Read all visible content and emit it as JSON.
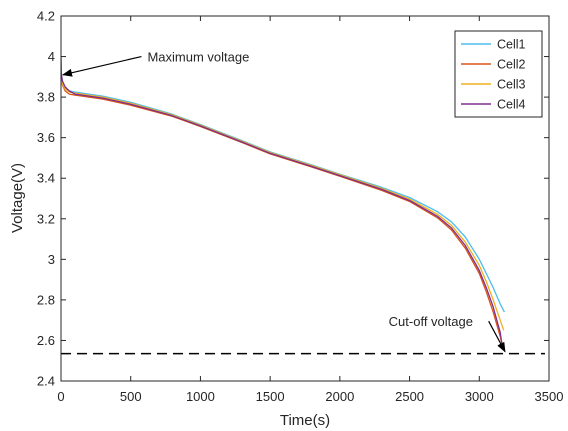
{
  "chart_data": {
    "type": "line",
    "xlabel": "Time(s)",
    "ylabel": "Voltage(V)",
    "xlim": [
      0,
      3500
    ],
    "ylim": [
      2.4,
      4.2
    ],
    "xticks": [
      0,
      500,
      1000,
      1500,
      2000,
      2500,
      3000,
      3500
    ],
    "yticks": [
      2.4,
      2.6,
      2.8,
      3,
      3.2,
      3.4,
      3.6,
      3.8,
      4,
      4.2
    ],
    "xtick_labels": [
      "0",
      "500",
      "1000",
      "1500",
      "2000",
      "2500",
      "3000",
      "3500"
    ],
    "ytick_labels": [
      "2.4",
      "2.6",
      "2.8",
      "3",
      "3.2",
      "3.4",
      "3.6",
      "3.8",
      "4",
      "4.2"
    ],
    "grid": false,
    "legend_position": "top-right",
    "series": [
      {
        "name": "Cell1",
        "color": "#4DBEEE",
        "x": [
          0,
          10,
          30,
          60,
          100,
          200,
          300,
          500,
          800,
          1000,
          1300,
          1500,
          1800,
          2000,
          2300,
          2500,
          2700,
          2800,
          2900,
          3000,
          3050,
          3100,
          3150,
          3180
        ],
        "y": [
          3.9,
          3.87,
          3.845,
          3.83,
          3.825,
          3.815,
          3.805,
          3.775,
          3.715,
          3.665,
          3.585,
          3.53,
          3.465,
          3.42,
          3.355,
          3.305,
          3.235,
          3.185,
          3.11,
          3.0,
          2.93,
          2.86,
          2.78,
          2.74
        ]
      },
      {
        "name": "Cell2",
        "color": "#D95319",
        "x": [
          0,
          10,
          30,
          60,
          100,
          200,
          300,
          500,
          800,
          1000,
          1300,
          1500,
          1800,
          2000,
          2300,
          2500,
          2700,
          2800,
          2900,
          3000,
          3050,
          3100,
          3150,
          3170
        ],
        "y": [
          3.9,
          3.86,
          3.83,
          3.815,
          3.81,
          3.8,
          3.79,
          3.76,
          3.705,
          3.655,
          3.575,
          3.52,
          3.455,
          3.41,
          3.34,
          3.285,
          3.205,
          3.145,
          3.055,
          2.93,
          2.84,
          2.74,
          2.62,
          2.56
        ]
      },
      {
        "name": "Cell3",
        "color": "#EDB120",
        "x": [
          0,
          10,
          30,
          60,
          100,
          200,
          300,
          500,
          800,
          1000,
          1300,
          1500,
          1800,
          2000,
          2300,
          2500,
          2700,
          2800,
          2900,
          3000,
          3050,
          3100,
          3150,
          3175
        ],
        "y": [
          3.9,
          3.865,
          3.84,
          3.825,
          3.82,
          3.81,
          3.8,
          3.77,
          3.712,
          3.662,
          3.582,
          3.527,
          3.462,
          3.417,
          3.35,
          3.297,
          3.222,
          3.168,
          3.085,
          2.97,
          2.89,
          2.8,
          2.7,
          2.65
        ]
      },
      {
        "name": "Cell4",
        "color": "#7E2F8E",
        "x": [
          0,
          2,
          10,
          30,
          60,
          100,
          200,
          300,
          500,
          800,
          1000,
          1300,
          1500,
          1800,
          2000,
          2300,
          2500,
          2700,
          2800,
          2900,
          3000,
          3050,
          3100,
          3150,
          3165
        ],
        "y": [
          4.0,
          3.92,
          3.88,
          3.85,
          3.83,
          3.815,
          3.805,
          3.795,
          3.765,
          3.708,
          3.658,
          3.578,
          3.523,
          3.458,
          3.413,
          3.345,
          3.29,
          3.212,
          3.155,
          3.068,
          2.945,
          2.86,
          2.765,
          2.64,
          2.57
        ]
      }
    ],
    "reference_line": {
      "y": 2.535,
      "style": "dashed",
      "color": "#000000"
    },
    "annotations": [
      {
        "text": "Maximum voltage",
        "x": 0,
        "y": 3.91,
        "text_x": 620,
        "text_y": 4.0
      },
      {
        "text": "Cut-off voltage",
        "x": 3170,
        "y": 2.545,
        "text_x": 2350,
        "text_y": 2.695
      }
    ]
  }
}
